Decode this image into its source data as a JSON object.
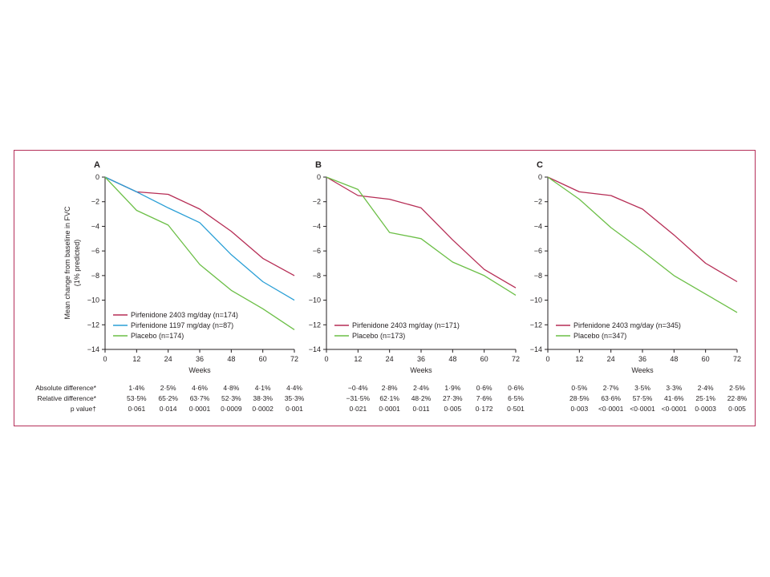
{
  "colors": {
    "frame": "#b5305a",
    "axis": "#231f20"
  },
  "y_axis_title": [
    "Mean change from baseline in FVC",
    "(1% predicted)"
  ],
  "row_labels": [
    "Absolute difference*",
    "Relative difference*",
    "p value†"
  ],
  "chart_data": [
    {
      "type": "line",
      "panel": "A",
      "title": "A",
      "xlabel": "Weeks",
      "ylabel": "Mean change from baseline in FVC (1% predicted)",
      "x": [
        0,
        12,
        24,
        36,
        48,
        60,
        72
      ],
      "xlim": [
        0,
        72
      ],
      "ylim": [
        -14,
        0
      ],
      "yticks": [
        0,
        -2,
        -4,
        -6,
        -8,
        -10,
        -12,
        -14
      ],
      "legend_position": "bottom-left",
      "grid": false,
      "series": [
        {
          "name": "Pirfenidone 2403 mg/day (n=174)",
          "color": "#b62d55",
          "values": [
            0,
            -1.2,
            -1.4,
            -2.6,
            -4.4,
            -6.6,
            -8.0
          ]
        },
        {
          "name": "Pirfenidone 1197 mg/day (n=87)",
          "color": "#2a9fd6",
          "values": [
            0,
            -1.2,
            -2.5,
            -3.7,
            -6.3,
            -8.5,
            -10.0
          ]
        },
        {
          "name": "Placebo (n=174)",
          "color": "#6cbf47",
          "values": [
            0,
            -2.7,
            -3.9,
            -7.1,
            -9.2,
            -10.7,
            -12.4
          ]
        }
      ],
      "table": {
        "absolute_difference": [
          "1·4%",
          "2·5%",
          "4·6%",
          "4·8%",
          "4·1%",
          "4·4%"
        ],
        "relative_difference": [
          "53·5%",
          "65·2%",
          "63·7%",
          "52·3%",
          "38·3%",
          "35·3%"
        ],
        "p_value": [
          "0·061",
          "0·014",
          "0·0001",
          "0·0009",
          "0·0002",
          "0·001"
        ]
      }
    },
    {
      "type": "line",
      "panel": "B",
      "title": "B",
      "xlabel": "Weeks",
      "ylabel": "",
      "x": [
        0,
        12,
        24,
        36,
        48,
        60,
        72
      ],
      "xlim": [
        0,
        72
      ],
      "ylim": [
        -14,
        0
      ],
      "yticks": [
        0,
        -2,
        -4,
        -6,
        -8,
        -10,
        -12,
        -14
      ],
      "legend_position": "bottom-left",
      "grid": false,
      "series": [
        {
          "name": "Pirfenidone 2403 mg/day (n=171)",
          "color": "#b62d55",
          "values": [
            0,
            -1.5,
            -1.8,
            -2.5,
            -5.1,
            -7.5,
            -9.0
          ]
        },
        {
          "name": "Placebo (n=173)",
          "color": "#6cbf47",
          "values": [
            0,
            -1.0,
            -4.5,
            -5.0,
            -6.9,
            -8.0,
            -9.6
          ]
        }
      ],
      "table": {
        "absolute_difference": [
          "−0·4%",
          "2·8%",
          "2·4%",
          "1·9%",
          "0·6%",
          "0·6%"
        ],
        "relative_difference": [
          "−31·5%",
          "62·1%",
          "48·2%",
          "27·3%",
          "7·6%",
          "6·5%"
        ],
        "p_value": [
          "0·021",
          "0·0001",
          "0·011",
          "0·005",
          "0·172",
          "0·501"
        ]
      }
    },
    {
      "type": "line",
      "panel": "C",
      "title": "C",
      "xlabel": "Weeks",
      "ylabel": "",
      "x": [
        0,
        12,
        24,
        36,
        48,
        60,
        72
      ],
      "xlim": [
        0,
        72
      ],
      "ylim": [
        -14,
        0
      ],
      "yticks": [
        0,
        -2,
        -4,
        -6,
        -8,
        -10,
        -12,
        -14
      ],
      "legend_position": "bottom-left",
      "grid": false,
      "series": [
        {
          "name": "Pirfenidone 2403 mg/day (n=345)",
          "color": "#b62d55",
          "values": [
            0,
            -1.2,
            -1.5,
            -2.6,
            -4.7,
            -7.0,
            -8.5
          ]
        },
        {
          "name": "Placebo (n=347)",
          "color": "#6cbf47",
          "values": [
            0,
            -1.8,
            -4.1,
            -6.0,
            -8.0,
            -9.5,
            -11.0
          ]
        }
      ],
      "table": {
        "absolute_difference": [
          "0·5%",
          "2·7%",
          "3·5%",
          "3·3%",
          "2·4%",
          "2·5%"
        ],
        "relative_difference": [
          "28·5%",
          "63·6%",
          "57·5%",
          "41·6%",
          "25·1%",
          "22·8%"
        ],
        "p_value": [
          "0·003",
          "<0·0001",
          "<0·0001",
          "<0·0001",
          "0·0003",
          "0·005"
        ]
      }
    }
  ]
}
